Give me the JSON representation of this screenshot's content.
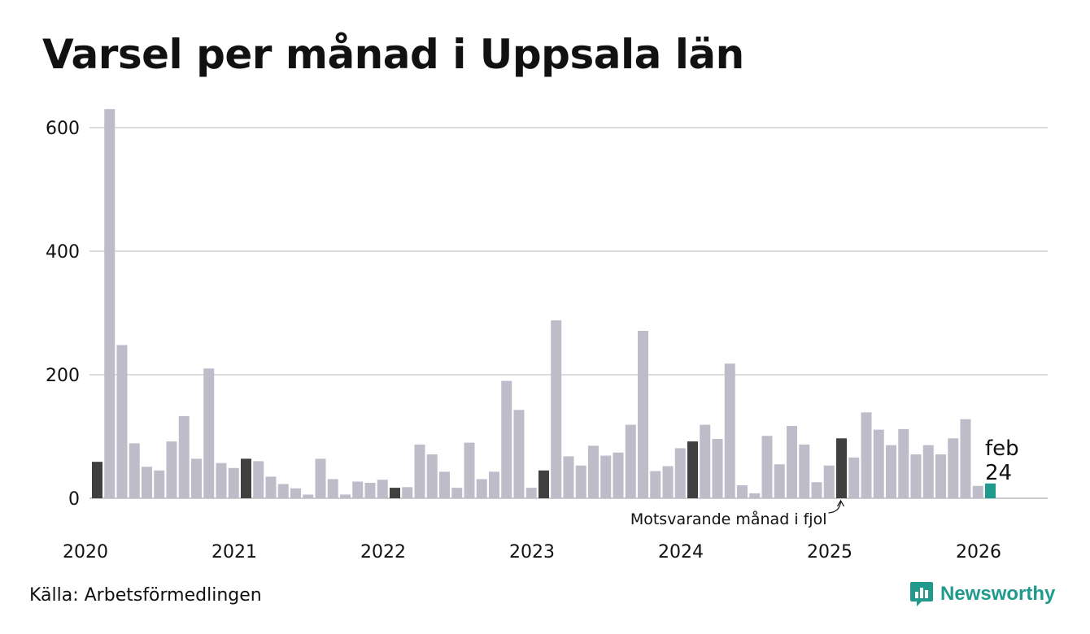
{
  "title": "Varsel per månad i Uppsala län",
  "source": "Källa: Arbetsförmedlingen",
  "brand": "Newsworthy",
  "colors": {
    "bar": "#bfbcca",
    "highlight": "#404040",
    "current": "#1f9a8c",
    "grid": "#dddddd",
    "brand": "#1f9a8c"
  },
  "chart_data": {
    "type": "bar",
    "title": "Varsel per månad i Uppsala län",
    "xlabel": "",
    "ylabel": "",
    "ylim": [
      0,
      660
    ],
    "yticks": [
      0,
      200,
      400,
      600
    ],
    "year_labels": [
      "2020",
      "2021",
      "2022",
      "2023",
      "2024",
      "2025",
      "2026"
    ],
    "start_year": 2020,
    "values": [
      59,
      630,
      248,
      89,
      51,
      45,
      92,
      133,
      64,
      210,
      57,
      49,
      64,
      60,
      35,
      23,
      16,
      6,
      64,
      31,
      6,
      27,
      25,
      30,
      17,
      18,
      87,
      71,
      43,
      17,
      90,
      31,
      43,
      190,
      143,
      17,
      45,
      288,
      68,
      53,
      85,
      69,
      74,
      119,
      271,
      44,
      52,
      81,
      92,
      119,
      96,
      218,
      21,
      8,
      101,
      55,
      117,
      87,
      26,
      53,
      97,
      66,
      139,
      111,
      86,
      112,
      71,
      86,
      71,
      97,
      128,
      20,
      24
    ],
    "highlight_indices": [
      0,
      12,
      24,
      36,
      48,
      60
    ],
    "current_index": 72,
    "current_label": {
      "month": "feb",
      "value": "24"
    },
    "annotation": "Motsvarande månad i fjol"
  }
}
